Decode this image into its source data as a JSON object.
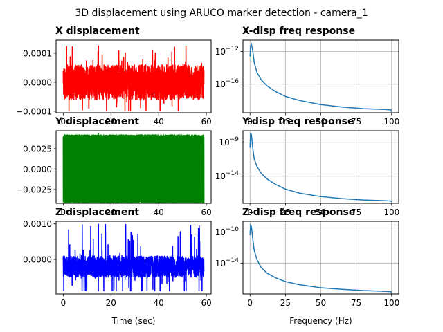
{
  "figure": {
    "title": "3D displacement using ARUCO marker detection - camera_1"
  },
  "chart_data": [
    {
      "id": "x-disp",
      "type": "line",
      "title": "X displacement",
      "xlabel": "",
      "ylabel": "",
      "xlim": [
        -3,
        62
      ],
      "ylim": [
        -0.000105,
        0.000145
      ],
      "xticks": [
        0,
        20,
        40,
        60
      ],
      "xtick_labels": [
        "0",
        "20",
        "40",
        "60"
      ],
      "yticks": [
        -0.0001,
        0.0,
        0.0001
      ],
      "ytick_labels": [
        "−0.0001",
        "0.0000",
        "0.0001"
      ],
      "grid": false,
      "color": "#ff0000",
      "x_range": [
        0,
        59
      ],
      "signal": {
        "center": 0.0,
        "typical_amplitude": 6e-05,
        "peak_max": 0.000125,
        "peak_min": -9.8e-05,
        "first_value": 4e-05
      }
    },
    {
      "id": "y-disp",
      "type": "line",
      "title": "Y displacement",
      "xlabel": "",
      "ylabel": "",
      "xlim": [
        -3,
        62
      ],
      "ylim": [
        -0.0042,
        0.0047
      ],
      "xticks": [
        0,
        20,
        40,
        60
      ],
      "xtick_labels": [
        "0",
        "20",
        "40",
        "60"
      ],
      "yticks": [
        -0.0025,
        0.0,
        0.0025
      ],
      "ytick_labels": [
        "−0.0025",
        "0.0000",
        "0.0025"
      ],
      "grid": false,
      "color": "#008000",
      "x_range": [
        0,
        59
      ],
      "signal": {
        "center": 0.0,
        "typical_amplitude": 0.0042,
        "peak_max": 0.0044,
        "peak_min": -0.0042
      }
    },
    {
      "id": "z-disp",
      "type": "line",
      "title": "Z displacement",
      "xlabel": "Time (sec)",
      "ylabel": "",
      "xlim": [
        -3,
        62
      ],
      "ylim": [
        -0.00097,
        0.00107
      ],
      "xticks": [
        0,
        20,
        40,
        60
      ],
      "xtick_labels": [
        "0",
        "20",
        "40",
        "60"
      ],
      "yticks": [
        0.0,
        0.001
      ],
      "ytick_labels": [
        "0.0000",
        "0.0010"
      ],
      "grid": false,
      "color": "#0000ff",
      "x_range": [
        0,
        59
      ],
      "signal": {
        "center": -0.0002,
        "typical_amplitude": 0.0003,
        "peak_max": 0.00099,
        "peak_min": -0.00088
      }
    },
    {
      "id": "x-freq",
      "type": "line",
      "title": "X-disp freq response",
      "xlabel": "",
      "ylabel": "",
      "yscale": "log",
      "xlim": [
        -5,
        105
      ],
      "ylim_log10": [
        -19.5,
        -10.6
      ],
      "xticks": [
        0,
        25,
        50,
        75,
        100
      ],
      "xtick_labels": [
        "0",
        "25",
        "50",
        "75",
        "100"
      ],
      "yticks_log10": [
        -12,
        -16
      ],
      "ytick_labels": [
        "10^-12",
        "10^-16"
      ],
      "grid": true,
      "color": "#1f77b4",
      "x": [
        0,
        0.4,
        1,
        2,
        3,
        5,
        8,
        12,
        18,
        25,
        35,
        50,
        65,
        80,
        95,
        99.5,
        100
      ],
      "log10_y": [
        -12.6,
        -11.3,
        -11.1,
        -12.0,
        -13.4,
        -14.6,
        -15.5,
        -16.2,
        -16.9,
        -17.5,
        -18.0,
        -18.5,
        -18.8,
        -19.0,
        -19.1,
        -19.15,
        -19.4
      ]
    },
    {
      "id": "y-freq",
      "type": "line",
      "title": "Y-disp freq response",
      "xlabel": "",
      "ylabel": "",
      "yscale": "log",
      "xlim": [
        -5,
        105
      ],
      "ylim_log10": [
        -18.0,
        -7.3
      ],
      "xticks": [
        0,
        25,
        50,
        75,
        100
      ],
      "xtick_labels": [
        "0",
        "25",
        "50",
        "75",
        "100"
      ],
      "yticks_log10": [
        -9,
        -14
      ],
      "ytick_labels": [
        "10^-9",
        "10^-14"
      ],
      "grid": true,
      "color": "#1f77b4",
      "x": [
        0,
        0.4,
        1,
        2,
        3,
        5,
        8,
        12,
        18,
        25,
        35,
        50,
        65,
        80,
        95,
        99.5,
        100
      ],
      "log10_y": [
        -9.8,
        -7.6,
        -7.9,
        -10.0,
        -11.5,
        -12.6,
        -13.6,
        -14.4,
        -15.2,
        -15.9,
        -16.5,
        -17.0,
        -17.3,
        -17.5,
        -17.6,
        -17.65,
        -17.8
      ]
    },
    {
      "id": "z-freq",
      "type": "line",
      "title": "Z-disp freq response",
      "xlabel": "Frequency (Hz)",
      "ylabel": "",
      "yscale": "log",
      "xlim": [
        -5,
        105
      ],
      "ylim_log10": [
        -18.0,
        -8.6
      ],
      "xticks": [
        0,
        25,
        50,
        75,
        100
      ],
      "xtick_labels": [
        "0",
        "25",
        "50",
        "75",
        "100"
      ],
      "yticks_log10": [
        -10,
        -14
      ],
      "ytick_labels": [
        "10^-10",
        "10^-14"
      ],
      "grid": true,
      "color": "#1f77b4",
      "x": [
        0,
        0.4,
        1,
        2,
        3,
        5,
        8,
        12,
        18,
        25,
        35,
        50,
        65,
        80,
        95,
        99.5,
        100
      ],
      "log10_y": [
        -10.4,
        -9.1,
        -9.3,
        -11.0,
        -12.4,
        -13.6,
        -14.6,
        -15.3,
        -15.9,
        -16.4,
        -16.8,
        -17.2,
        -17.4,
        -17.55,
        -17.65,
        -17.7,
        -17.95
      ]
    }
  ]
}
